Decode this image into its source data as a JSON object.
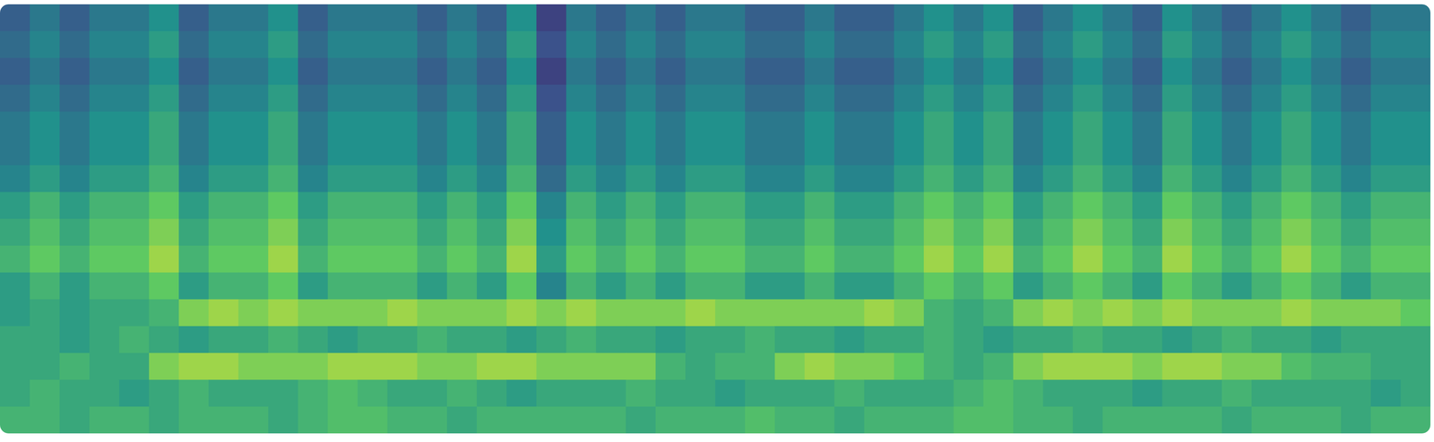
{
  "chart_data": {
    "type": "heatmap",
    "tick_labels": false,
    "zlim": [
      0,
      1
    ],
    "cells": [
      [
        0.3,
        0.4,
        0.3,
        0.4,
        0.4,
        0.5,
        0.3,
        0.4,
        0.4,
        0.5,
        0.3,
        0.4,
        0.4,
        0.4,
        0.3,
        0.4,
        0.3,
        0.5,
        0.2,
        0.4,
        0.3,
        0.4,
        0.3,
        0.4,
        0.4,
        0.3,
        0.3,
        0.4,
        0.3,
        0.3,
        0.4,
        0.5,
        0.4,
        0.5,
        0.3,
        0.4,
        0.5,
        0.4,
        0.3,
        0.5,
        0.4,
        0.3,
        0.4,
        0.5,
        0.4,
        0.3,
        0.4,
        0.4
      ],
      [
        0.35,
        0.45,
        0.35,
        0.45,
        0.45,
        0.55,
        0.35,
        0.45,
        0.45,
        0.55,
        0.35,
        0.45,
        0.45,
        0.45,
        0.35,
        0.45,
        0.35,
        0.55,
        0.25,
        0.45,
        0.35,
        0.45,
        0.35,
        0.45,
        0.45,
        0.35,
        0.35,
        0.45,
        0.35,
        0.35,
        0.45,
        0.55,
        0.45,
        0.55,
        0.35,
        0.45,
        0.55,
        0.45,
        0.35,
        0.55,
        0.45,
        0.35,
        0.45,
        0.55,
        0.45,
        0.35,
        0.45,
        0.45
      ],
      [
        0.3,
        0.4,
        0.3,
        0.4,
        0.4,
        0.5,
        0.3,
        0.4,
        0.4,
        0.5,
        0.3,
        0.4,
        0.4,
        0.4,
        0.3,
        0.4,
        0.3,
        0.5,
        0.2,
        0.4,
        0.3,
        0.4,
        0.3,
        0.4,
        0.4,
        0.3,
        0.3,
        0.4,
        0.3,
        0.3,
        0.4,
        0.5,
        0.4,
        0.5,
        0.3,
        0.4,
        0.5,
        0.4,
        0.3,
        0.5,
        0.4,
        0.3,
        0.4,
        0.5,
        0.4,
        0.3,
        0.4,
        0.4
      ],
      [
        0.35,
        0.45,
        0.35,
        0.45,
        0.45,
        0.55,
        0.35,
        0.45,
        0.45,
        0.55,
        0.35,
        0.45,
        0.45,
        0.45,
        0.35,
        0.45,
        0.35,
        0.55,
        0.25,
        0.45,
        0.35,
        0.45,
        0.35,
        0.45,
        0.45,
        0.35,
        0.35,
        0.45,
        0.35,
        0.35,
        0.45,
        0.55,
        0.45,
        0.55,
        0.35,
        0.45,
        0.55,
        0.45,
        0.35,
        0.55,
        0.45,
        0.35,
        0.45,
        0.55,
        0.45,
        0.35,
        0.45,
        0.45
      ],
      [
        0.4,
        0.5,
        0.4,
        0.5,
        0.5,
        0.6,
        0.4,
        0.5,
        0.5,
        0.6,
        0.4,
        0.5,
        0.5,
        0.5,
        0.4,
        0.5,
        0.4,
        0.6,
        0.3,
        0.5,
        0.4,
        0.5,
        0.4,
        0.5,
        0.5,
        0.4,
        0.4,
        0.5,
        0.4,
        0.4,
        0.5,
        0.6,
        0.5,
        0.6,
        0.4,
        0.5,
        0.6,
        0.5,
        0.4,
        0.6,
        0.5,
        0.4,
        0.5,
        0.6,
        0.5,
        0.4,
        0.5,
        0.5
      ],
      [
        0.4,
        0.5,
        0.4,
        0.5,
        0.5,
        0.6,
        0.4,
        0.5,
        0.5,
        0.6,
        0.4,
        0.5,
        0.5,
        0.5,
        0.4,
        0.5,
        0.4,
        0.6,
        0.3,
        0.5,
        0.4,
        0.5,
        0.4,
        0.5,
        0.5,
        0.4,
        0.4,
        0.5,
        0.4,
        0.4,
        0.5,
        0.6,
        0.5,
        0.6,
        0.4,
        0.5,
        0.6,
        0.5,
        0.4,
        0.6,
        0.5,
        0.4,
        0.5,
        0.6,
        0.5,
        0.4,
        0.5,
        0.5
      ],
      [
        0.45,
        0.55,
        0.45,
        0.55,
        0.55,
        0.65,
        0.45,
        0.55,
        0.55,
        0.65,
        0.45,
        0.55,
        0.55,
        0.55,
        0.45,
        0.55,
        0.45,
        0.65,
        0.35,
        0.55,
        0.45,
        0.55,
        0.45,
        0.55,
        0.55,
        0.45,
        0.45,
        0.55,
        0.45,
        0.45,
        0.55,
        0.65,
        0.55,
        0.65,
        0.45,
        0.55,
        0.65,
        0.55,
        0.45,
        0.65,
        0.55,
        0.45,
        0.55,
        0.65,
        0.55,
        0.45,
        0.55,
        0.55
      ],
      [
        0.55,
        0.65,
        0.55,
        0.65,
        0.65,
        0.75,
        0.55,
        0.65,
        0.65,
        0.75,
        0.55,
        0.65,
        0.65,
        0.65,
        0.55,
        0.65,
        0.55,
        0.75,
        0.45,
        0.65,
        0.55,
        0.65,
        0.55,
        0.65,
        0.65,
        0.55,
        0.55,
        0.65,
        0.55,
        0.55,
        0.65,
        0.75,
        0.65,
        0.75,
        0.55,
        0.65,
        0.75,
        0.65,
        0.55,
        0.75,
        0.65,
        0.55,
        0.65,
        0.75,
        0.65,
        0.55,
        0.65,
        0.65
      ],
      [
        0.6,
        0.7,
        0.6,
        0.7,
        0.7,
        0.8,
        0.6,
        0.7,
        0.7,
        0.8,
        0.6,
        0.7,
        0.7,
        0.7,
        0.6,
        0.7,
        0.6,
        0.8,
        0.5,
        0.7,
        0.6,
        0.7,
        0.6,
        0.7,
        0.7,
        0.6,
        0.6,
        0.7,
        0.6,
        0.6,
        0.7,
        0.8,
        0.7,
        0.8,
        0.6,
        0.7,
        0.8,
        0.7,
        0.6,
        0.8,
        0.7,
        0.6,
        0.7,
        0.8,
        0.7,
        0.6,
        0.7,
        0.7
      ],
      [
        0.65,
        0.75,
        0.65,
        0.75,
        0.75,
        0.85,
        0.65,
        0.75,
        0.75,
        0.85,
        0.65,
        0.75,
        0.75,
        0.75,
        0.65,
        0.75,
        0.65,
        0.85,
        0.55,
        0.75,
        0.65,
        0.75,
        0.65,
        0.75,
        0.75,
        0.65,
        0.65,
        0.75,
        0.65,
        0.65,
        0.75,
        0.85,
        0.75,
        0.85,
        0.65,
        0.75,
        0.85,
        0.75,
        0.65,
        0.85,
        0.75,
        0.65,
        0.75,
        0.85,
        0.75,
        0.65,
        0.75,
        0.75
      ],
      [
        0.55,
        0.65,
        0.55,
        0.65,
        0.65,
        0.75,
        0.55,
        0.65,
        0.65,
        0.75,
        0.55,
        0.65,
        0.65,
        0.65,
        0.55,
        0.65,
        0.55,
        0.75,
        0.45,
        0.65,
        0.55,
        0.65,
        0.55,
        0.65,
        0.65,
        0.55,
        0.55,
        0.65,
        0.55,
        0.55,
        0.65,
        0.75,
        0.65,
        0.75,
        0.55,
        0.65,
        0.75,
        0.65,
        0.55,
        0.75,
        0.65,
        0.55,
        0.65,
        0.75,
        0.65,
        0.55,
        0.65,
        0.65
      ],
      [
        0.55,
        0.6,
        0.55,
        0.6,
        0.6,
        0.65,
        0.8,
        0.85,
        0.8,
        0.85,
        0.8,
        0.8,
        0.8,
        0.85,
        0.8,
        0.8,
        0.8,
        0.85,
        0.8,
        0.85,
        0.8,
        0.8,
        0.8,
        0.85,
        0.8,
        0.8,
        0.8,
        0.8,
        0.8,
        0.85,
        0.8,
        0.65,
        0.6,
        0.65,
        0.8,
        0.85,
        0.8,
        0.85,
        0.8,
        0.85,
        0.8,
        0.8,
        0.8,
        0.85,
        0.8,
        0.8,
        0.8,
        0.75
      ],
      [
        0.6,
        0.6,
        0.55,
        0.6,
        0.65,
        0.6,
        0.55,
        0.6,
        0.6,
        0.65,
        0.6,
        0.55,
        0.6,
        0.6,
        0.65,
        0.6,
        0.6,
        0.55,
        0.6,
        0.65,
        0.6,
        0.6,
        0.55,
        0.6,
        0.6,
        0.65,
        0.6,
        0.6,
        0.55,
        0.6,
        0.6,
        0.65,
        0.6,
        0.55,
        0.6,
        0.6,
        0.65,
        0.6,
        0.6,
        0.55,
        0.6,
        0.65,
        0.6,
        0.6,
        0.55,
        0.6,
        0.6,
        0.6
      ],
      [
        0.6,
        0.6,
        0.65,
        0.6,
        0.6,
        0.8,
        0.85,
        0.85,
        0.8,
        0.8,
        0.8,
        0.85,
        0.85,
        0.85,
        0.8,
        0.8,
        0.85,
        0.85,
        0.8,
        0.8,
        0.8,
        0.8,
        0.65,
        0.6,
        0.65,
        0.65,
        0.8,
        0.85,
        0.8,
        0.8,
        0.75,
        0.65,
        0.6,
        0.65,
        0.8,
        0.85,
        0.85,
        0.85,
        0.8,
        0.85,
        0.85,
        0.8,
        0.8,
        0.7,
        0.65,
        0.65,
        0.6,
        0.6
      ],
      [
        0.6,
        0.65,
        0.6,
        0.6,
        0.55,
        0.6,
        0.65,
        0.6,
        0.6,
        0.6,
        0.65,
        0.7,
        0.65,
        0.6,
        0.6,
        0.65,
        0.6,
        0.55,
        0.6,
        0.6,
        0.6,
        0.65,
        0.6,
        0.6,
        0.55,
        0.6,
        0.6,
        0.6,
        0.65,
        0.6,
        0.6,
        0.6,
        0.65,
        0.7,
        0.65,
        0.6,
        0.6,
        0.6,
        0.55,
        0.6,
        0.6,
        0.65,
        0.6,
        0.6,
        0.6,
        0.6,
        0.55,
        0.6
      ],
      [
        0.65,
        0.65,
        0.6,
        0.65,
        0.65,
        0.6,
        0.65,
        0.65,
        0.65,
        0.6,
        0.65,
        0.7,
        0.7,
        0.65,
        0.65,
        0.6,
        0.65,
        0.65,
        0.65,
        0.65,
        0.65,
        0.6,
        0.65,
        0.65,
        0.65,
        0.7,
        0.65,
        0.65,
        0.6,
        0.65,
        0.65,
        0.65,
        0.7,
        0.7,
        0.65,
        0.65,
        0.6,
        0.65,
        0.65,
        0.65,
        0.65,
        0.6,
        0.65,
        0.65,
        0.65,
        0.6,
        0.65,
        0.65
      ]
    ]
  }
}
